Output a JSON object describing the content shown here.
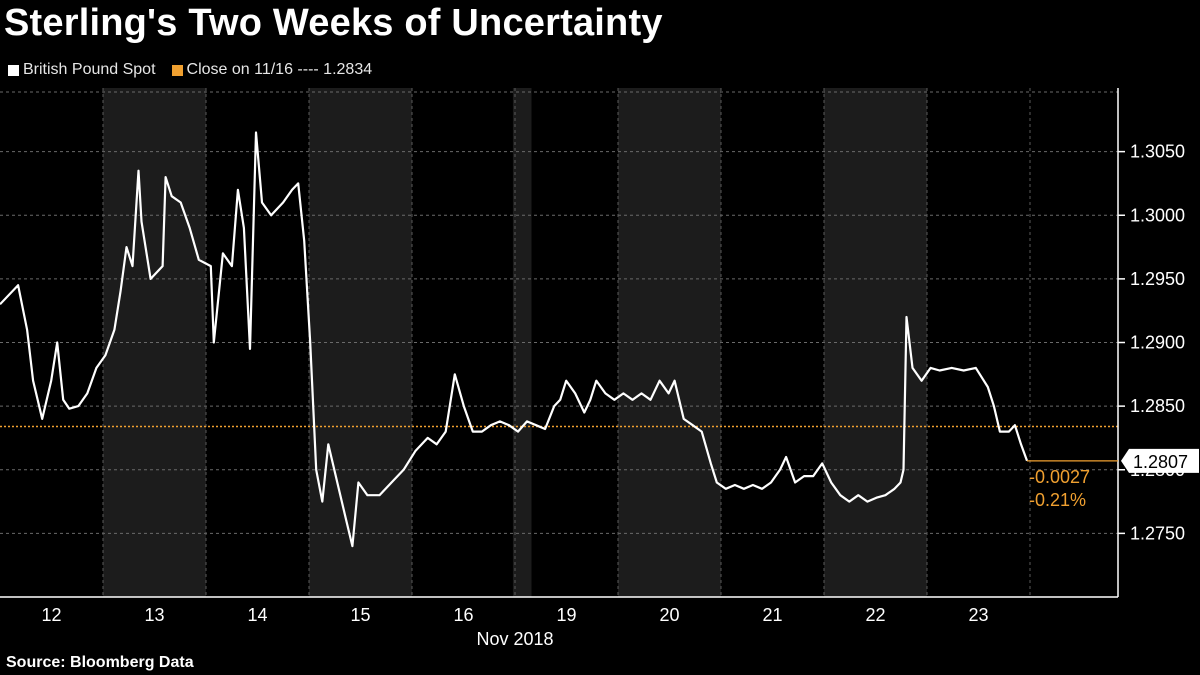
{
  "chart_data": {
    "type": "line",
    "title": "Sterling's Two Weeks of Uncertainty",
    "xlabel": "Nov 2018",
    "ylabel": "",
    "categories": [
      "12",
      "13",
      "14",
      "15",
      "16",
      "19",
      "20",
      "21",
      "22",
      "23"
    ],
    "ylim": [
      1.27,
      1.31
    ],
    "yticks": [
      "1.2750",
      "1.2800",
      "1.2850",
      "1.2900",
      "1.2950",
      "1.3000",
      "1.3050"
    ],
    "grid": true,
    "legend_position": "top-left",
    "series": [
      {
        "name": "British Pound Spot",
        "color": "#ffffff",
        "points": [
          [
            0.0,
            1.293
          ],
          [
            0.3,
            1.2945
          ],
          [
            0.45,
            1.291
          ],
          [
            0.55,
            1.287
          ],
          [
            0.7,
            1.284
          ],
          [
            0.85,
            1.287
          ],
          [
            0.95,
            1.29
          ],
          [
            1.05,
            1.2855
          ],
          [
            1.15,
            1.2848
          ],
          [
            1.3,
            1.285
          ],
          [
            1.45,
            1.286
          ],
          [
            1.6,
            1.288
          ],
          [
            1.75,
            1.289
          ],
          [
            1.9,
            1.291
          ],
          [
            2.0,
            1.294
          ],
          [
            2.1,
            1.2975
          ],
          [
            2.2,
            1.296
          ],
          [
            2.3,
            1.3035
          ],
          [
            2.35,
            1.2995
          ],
          [
            2.5,
            1.295
          ],
          [
            2.7,
            1.296
          ],
          [
            2.75,
            1.303
          ],
          [
            2.85,
            1.3015
          ],
          [
            3.0,
            1.301
          ],
          [
            3.15,
            1.299
          ],
          [
            3.3,
            1.2965
          ],
          [
            3.5,
            1.296
          ],
          [
            3.55,
            1.29
          ],
          [
            3.7,
            1.297
          ],
          [
            3.85,
            1.296
          ],
          [
            3.95,
            1.302
          ],
          [
            4.05,
            1.299
          ],
          [
            4.15,
            1.2895
          ],
          [
            4.25,
            1.3065
          ],
          [
            4.35,
            1.301
          ],
          [
            4.5,
            1.3
          ],
          [
            4.7,
            1.301
          ],
          [
            4.85,
            1.302
          ],
          [
            4.95,
            1.3025
          ],
          [
            5.05,
            1.298
          ],
          [
            5.15,
            1.29
          ],
          [
            5.25,
            1.28
          ],
          [
            5.35,
            1.2775
          ],
          [
            5.45,
            1.282
          ],
          [
            5.6,
            1.279
          ],
          [
            5.75,
            1.276
          ],
          [
            5.85,
            1.274
          ],
          [
            5.95,
            1.279
          ],
          [
            6.1,
            1.278
          ],
          [
            6.3,
            1.278
          ],
          [
            6.5,
            1.279
          ],
          [
            6.7,
            1.28
          ],
          [
            6.9,
            1.2815
          ],
          [
            7.1,
            1.2825
          ],
          [
            7.25,
            1.282
          ],
          [
            7.4,
            1.283
          ],
          [
            7.55,
            1.2875
          ],
          [
            7.7,
            1.285
          ],
          [
            7.85,
            1.283
          ],
          [
            8.0,
            1.283
          ],
          [
            8.15,
            1.2835
          ],
          [
            8.3,
            1.2838
          ],
          [
            8.45,
            1.2835
          ],
          [
            8.6,
            1.283
          ],
          [
            8.75,
            1.2838
          ],
          [
            8.9,
            1.2835
          ],
          [
            9.05,
            1.2832
          ],
          [
            9.2,
            1.285
          ],
          [
            9.3,
            1.2855
          ],
          [
            9.4,
            1.287
          ],
          [
            9.55,
            1.286
          ],
          [
            9.7,
            1.2845
          ],
          [
            9.8,
            1.2855
          ],
          [
            9.9,
            1.287
          ],
          [
            10.05,
            1.286
          ],
          [
            10.2,
            1.2855
          ],
          [
            10.35,
            1.286
          ],
          [
            10.5,
            1.2855
          ],
          [
            10.65,
            1.286
          ],
          [
            10.8,
            1.2855
          ],
          [
            10.95,
            1.287
          ],
          [
            11.1,
            1.286
          ],
          [
            11.2,
            1.287
          ],
          [
            11.35,
            1.284
          ],
          [
            11.5,
            1.2835
          ],
          [
            11.65,
            1.283
          ],
          [
            11.8,
            1.2805
          ],
          [
            11.9,
            1.279
          ],
          [
            12.05,
            1.2785
          ],
          [
            12.2,
            1.2788
          ],
          [
            12.35,
            1.2785
          ],
          [
            12.5,
            1.2788
          ],
          [
            12.65,
            1.2785
          ],
          [
            12.8,
            1.279
          ],
          [
            12.95,
            1.28
          ],
          [
            13.05,
            1.281
          ],
          [
            13.2,
            1.279
          ],
          [
            13.35,
            1.2795
          ],
          [
            13.5,
            1.2795
          ],
          [
            13.65,
            1.2805
          ],
          [
            13.8,
            1.279
          ],
          [
            13.95,
            1.278
          ],
          [
            14.1,
            1.2775
          ],
          [
            14.25,
            1.278
          ],
          [
            14.4,
            1.2775
          ],
          [
            14.55,
            1.2778
          ],
          [
            14.7,
            1.278
          ],
          [
            14.85,
            1.2785
          ],
          [
            14.95,
            1.279
          ],
          [
            15.0,
            1.28
          ],
          [
            15.05,
            1.292
          ],
          [
            15.15,
            1.288
          ],
          [
            15.3,
            1.287
          ],
          [
            15.45,
            1.288
          ],
          [
            15.6,
            1.2878
          ],
          [
            15.8,
            1.288
          ],
          [
            16.0,
            1.2878
          ],
          [
            16.2,
            1.288
          ],
          [
            16.4,
            1.2865
          ],
          [
            16.5,
            1.285
          ],
          [
            16.6,
            1.283
          ],
          [
            16.75,
            1.283
          ],
          [
            16.85,
            1.2835
          ],
          [
            16.95,
            1.282
          ],
          [
            17.05,
            1.2807
          ]
        ]
      },
      {
        "name": "Close on 11/16",
        "color": "#f0a030",
        "value": 1.2834,
        "style": "dashed"
      }
    ],
    "legend": {
      "series_label": "British Pound Spot",
      "reference_label": "Close on 11/16 ---- 1.2834"
    },
    "last_value": "1.2807",
    "change": "-0.0027",
    "change_pct": "-0.21%",
    "shaded_day_indices": [
      1,
      3,
      5,
      6,
      8
    ]
  },
  "source": "Source:  Bloomberg Data"
}
